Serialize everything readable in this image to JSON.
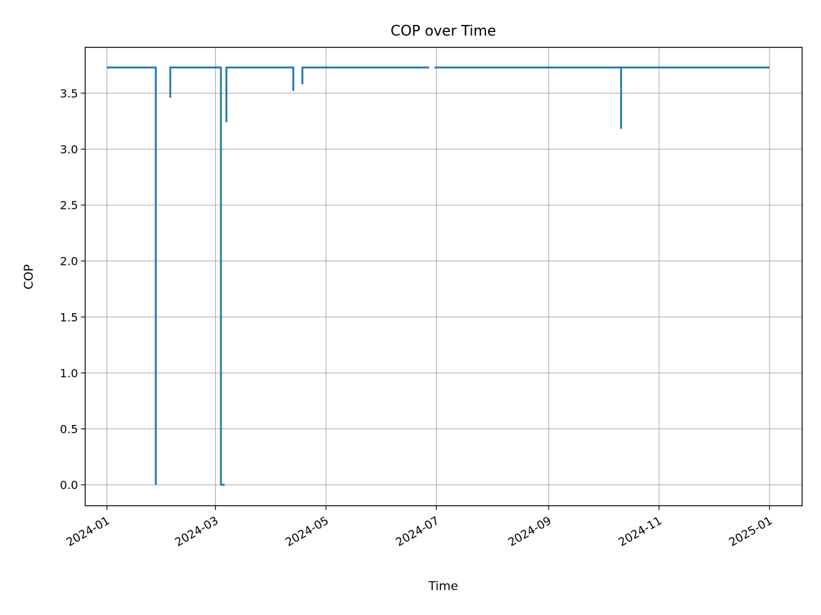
{
  "chart_data": {
    "type": "line",
    "title": "COP over Time",
    "xlabel": "Time",
    "ylabel": "COP",
    "x_range": [
      "2023-12-20",
      "2025-01-19"
    ],
    "ylim": [
      -0.187,
      3.91
    ],
    "x_ticks": [
      "2024-01",
      "2024-03",
      "2024-05",
      "2024-07",
      "2024-09",
      "2024-11",
      "2025-01"
    ],
    "x_tick_dates": [
      "2024-01-01",
      "2024-03-01",
      "2024-05-01",
      "2024-07-01",
      "2024-09-01",
      "2024-11-01",
      "2025-01-01"
    ],
    "y_ticks": [
      "0.0",
      "0.5",
      "1.0",
      "1.5",
      "2.0",
      "2.5",
      "3.0",
      "3.5"
    ],
    "y_tick_values": [
      0,
      0.5,
      1.0,
      1.5,
      2.0,
      2.5,
      3.0,
      3.5
    ],
    "grid": true,
    "color": "#1f77b4",
    "series": [
      {
        "segments": [
          [
            [
              "2024-01-01",
              3.73
            ],
            [
              "2024-01-28",
              3.73
            ],
            [
              "2024-01-28",
              0.0
            ],
            [
              "2024-01-28",
              0.0
            ]
          ],
          [
            [
              "2024-02-05",
              3.46
            ],
            [
              "2024-02-05",
              3.73
            ],
            [
              "2024-03-04",
              3.73
            ],
            [
              "2024-03-04",
              3.15
            ],
            [
              "2024-03-04",
              0.0
            ],
            [
              "2024-03-06",
              0.0
            ]
          ],
          [
            [
              "2024-03-07",
              3.24
            ],
            [
              "2024-03-07",
              3.73
            ],
            [
              "2024-04-13",
              3.73
            ],
            [
              "2024-04-13",
              3.52
            ]
          ],
          [
            [
              "2024-04-18",
              3.58
            ],
            [
              "2024-04-18",
              3.73
            ],
            [
              "2024-06-27",
              3.73
            ]
          ],
          [
            [
              "2024-06-30",
              3.73
            ],
            [
              "2024-10-11",
              3.73
            ],
            [
              "2024-10-11",
              3.19
            ],
            [
              "2024-10-11",
              3.73
            ],
            [
              "2025-01-01",
              3.73
            ]
          ]
        ]
      }
    ]
  }
}
